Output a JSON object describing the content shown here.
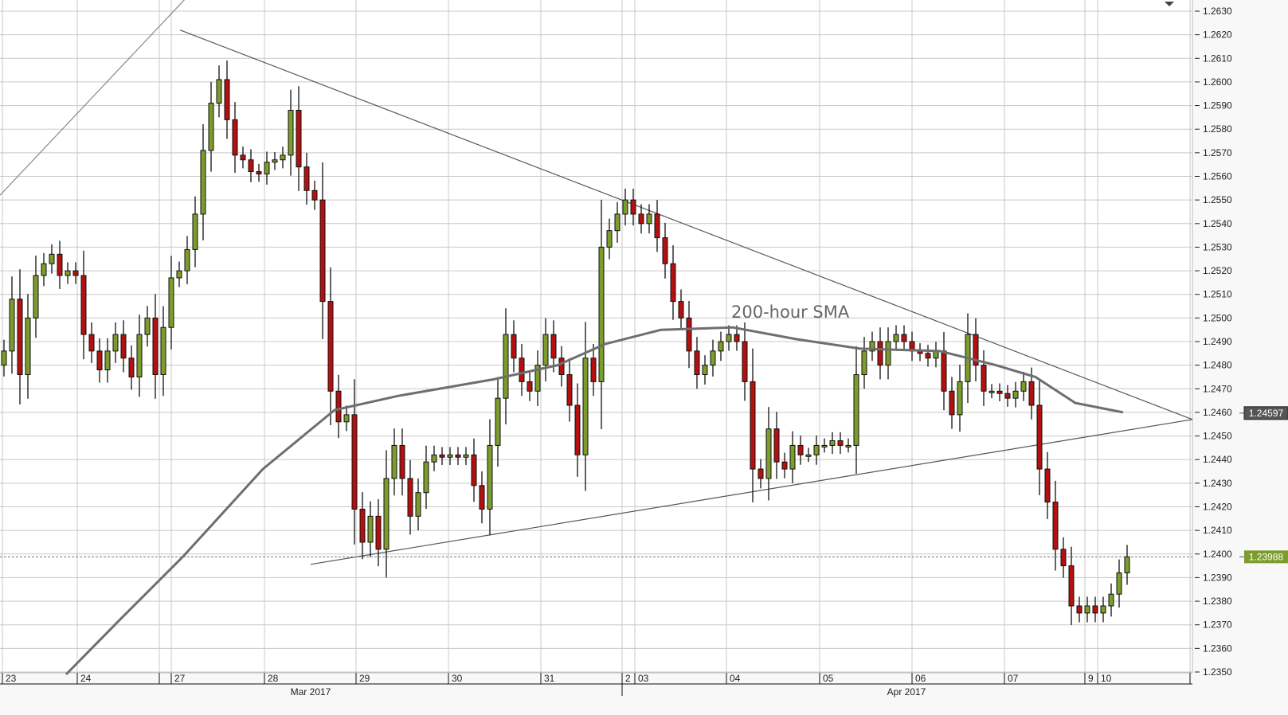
{
  "chart_data": {
    "type": "candlestick",
    "title": "",
    "colors": {
      "up": "#7c9c2c",
      "down": "#b3100f",
      "sma": "#6e6e6e",
      "trendline": "#555555",
      "grid": "#c8c8c8",
      "last_price_badge": "#7c9c2c",
      "sma_badge": "#555555"
    },
    "y_axis": {
      "range": [
        1.235,
        1.263
      ],
      "step": 0.001,
      "tick_labels": [
        "1.2350",
        "1.2360",
        "1.2370",
        "1.2380",
        "1.2390",
        "1.2400",
        "1.2410",
        "1.2420",
        "1.2430",
        "1.2440",
        "1.2450",
        "1.2460",
        "1.2470",
        "1.2480",
        "1.2490",
        "1.2500",
        "1.2510",
        "1.2520",
        "1.2530",
        "1.2540",
        "1.2550",
        "1.2560",
        "1.2570",
        "1.2580",
        "1.2590",
        "1.2600",
        "1.2610",
        "1.2620",
        "1.2630"
      ]
    },
    "x_axis": {
      "day_labels": [
        "23",
        "24",
        "27",
        "28",
        "29",
        "30",
        "31",
        "2",
        "03",
        "04",
        "05",
        "06",
        "07",
        "9",
        "10"
      ],
      "month_labels": [
        "Mar 2017",
        "Apr 2017"
      ]
    },
    "grid": true,
    "first_open": 1.248,
    "closes": [
      1.2486,
      1.2508,
      1.2476,
      1.25,
      1.2518,
      1.2523,
      1.2527,
      1.2518,
      1.252,
      1.2518,
      1.2493,
      1.2486,
      1.2478,
      1.2486,
      1.2493,
      1.2483,
      1.2475,
      1.2493,
      1.25,
      1.2476,
      1.2496,
      1.2517,
      1.252,
      1.2529,
      1.2544,
      1.2571,
      1.2591,
      1.2601,
      1.2584,
      1.2569,
      1.2567,
      1.2562,
      1.2561,
      1.2566,
      1.2567,
      1.2569,
      1.2588,
      1.2564,
      1.2554,
      1.255,
      1.2507,
      1.2469,
      1.2456,
      1.2459,
      1.2419,
      1.2405,
      1.2416,
      1.2402,
      1.2432,
      1.2446,
      1.2432,
      1.2416,
      1.2426,
      1.2439,
      1.2442,
      1.2441,
      1.2442,
      1.2441,
      1.2442,
      1.2429,
      1.2419,
      1.2446,
      1.2466,
      1.2493,
      1.2483,
      1.2473,
      1.2469,
      1.248,
      1.2493,
      1.2483,
      1.2476,
      1.2463,
      1.2442,
      1.2483,
      1.2473,
      1.253,
      1.2537,
      1.2544,
      1.255,
      1.2544,
      1.254,
      1.2544,
      1.2534,
      1.2523,
      1.2507,
      1.25,
      1.2486,
      1.2476,
      1.248,
      1.2486,
      1.249,
      1.2493,
      1.249,
      1.2473,
      1.2436,
      1.2432,
      1.2453,
      1.2439,
      1.2436,
      1.2446,
      1.2442,
      1.2442,
      1.2446,
      1.2446,
      1.2448,
      1.2446,
      1.2446,
      1.2476,
      1.2486,
      1.249,
      1.248,
      1.249,
      1.2493,
      1.249,
      1.2486,
      1.2485,
      1.2483,
      1.2486,
      1.2469,
      1.2459,
      1.2473,
      1.2493,
      1.248,
      1.2469,
      1.2469,
      1.2468,
      1.2466,
      1.2469,
      1.2473,
      1.2463,
      1.2436,
      1.2422,
      1.2402,
      1.2395,
      1.2378,
      1.2375,
      1.2378,
      1.2375,
      1.2378,
      1.2383,
      1.2392,
      1.23988
    ],
    "sma": {
      "label": "200-hour SMA",
      "points": [
        [
          7.8,
          1.2349
        ],
        [
          14.5,
          1.2372
        ],
        [
          22.5,
          1.2399
        ],
        [
          32.5,
          1.2436
        ],
        [
          41.5,
          1.2461
        ],
        [
          49.5,
          1.2467
        ],
        [
          61.5,
          1.2474
        ],
        [
          69.5,
          1.248
        ],
        [
          75.5,
          1.2489
        ],
        [
          82.5,
          1.2495
        ],
        [
          91.5,
          1.2496
        ],
        [
          99.5,
          1.2491
        ],
        [
          107.5,
          1.2487
        ],
        [
          117.5,
          1.2486
        ],
        [
          124.5,
          1.248
        ],
        [
          129.5,
          1.2475
        ],
        [
          134.5,
          1.2464
        ],
        [
          140.5,
          1.246
        ]
      ]
    },
    "trendlines": [
      {
        "from": [
          22.1,
          1.2622
        ],
        "to": [
          149.2,
          1.2457
        ]
      },
      {
        "from": [
          38.5,
          1.23956
        ],
        "to": [
          149.2,
          1.2457
        ]
      },
      {
        "from": [
          -0.5,
          1.2552
        ],
        "to": [
          22.7,
          1.2635
        ]
      }
    ],
    "price_badges": [
      {
        "label": "1.24597",
        "value": 1.24597,
        "kind": "sma"
      },
      {
        "label": "1.23988",
        "value": 1.23988,
        "kind": "last"
      }
    ],
    "last_price": 1.23988
  }
}
